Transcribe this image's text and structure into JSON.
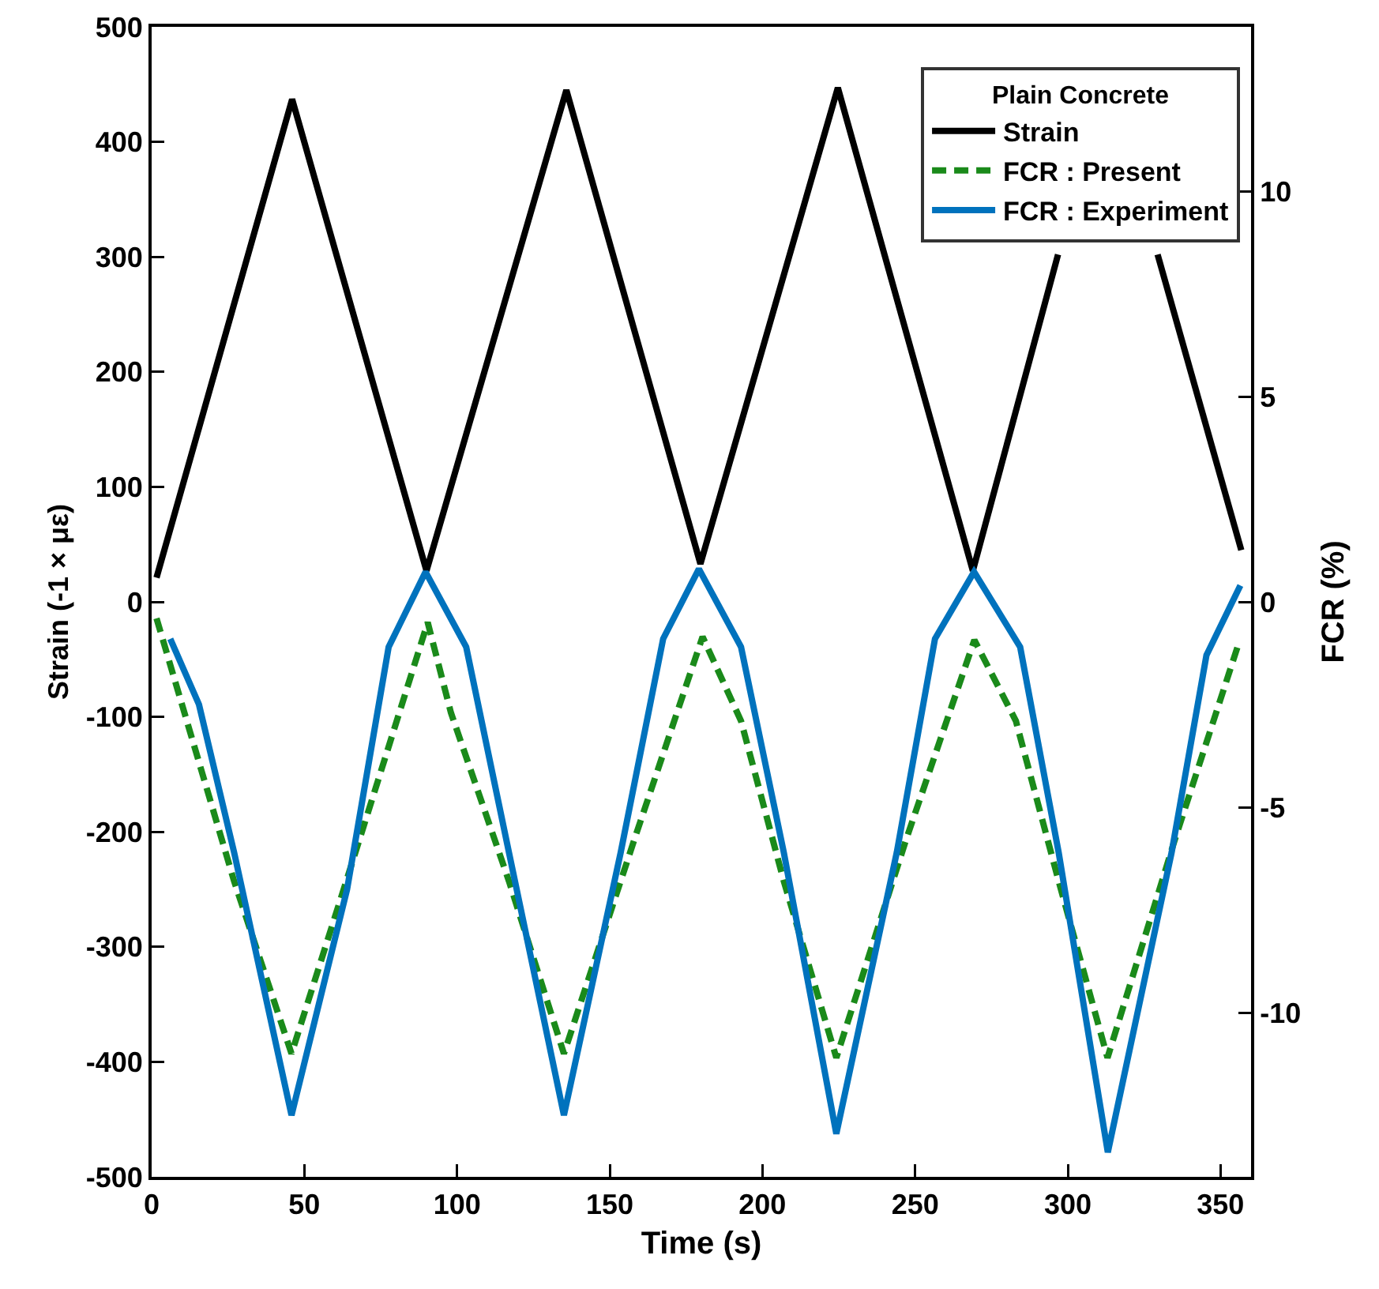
{
  "chart_data": {
    "type": "line",
    "xlabel": "Time (s)",
    "ylabel": "Strain (-1 × με)",
    "y2label": "FCR (%)",
    "legend_title": "Plain Concrete",
    "legend": "top right",
    "grid": false,
    "marker": "none",
    "xlim": [
      0,
      360
    ],
    "xticks": [
      0,
      50,
      100,
      150,
      200,
      250,
      300,
      350
    ],
    "ylim": [
      -500,
      500
    ],
    "yticks": [
      -500,
      -400,
      -300,
      -200,
      -100,
      0,
      100,
      200,
      300,
      400,
      500
    ],
    "y2lim": [
      -14,
      14
    ],
    "y2ticks": [
      -10,
      -5,
      0,
      5,
      10
    ],
    "series": [
      {
        "name": "Strain",
        "color": "#000000",
        "line_style": "solid",
        "x": [
          1.6,
          46,
          90,
          135.8,
          179.7,
          224.7,
          268.9,
          296.8,
          313,
          329.4,
          356.8
        ],
        "values": [
          21,
          437,
          27,
          445,
          33,
          447,
          27,
          302,
          null,
          302,
          45
        ]
      },
      {
        "name": "FCR : Present",
        "color": "#1a8a1a",
        "line_style": "dashed",
        "axis": "y2",
        "x": [
          1.6,
          27,
          45.8,
          68,
          90.4,
          98,
          117,
          135,
          158,
          180.4,
          193,
          207,
          224.2,
          247,
          269.4,
          283,
          297,
          313,
          335,
          356
        ],
        "values": [
          -0.4,
          -6.8,
          -11,
          -5.8,
          -0.5,
          -2.7,
          -6.8,
          -11,
          -5.8,
          -0.85,
          -2.9,
          -6.8,
          -11.1,
          -5.8,
          -0.93,
          -2.9,
          -6.8,
          -11.1,
          -5.8,
          -1
        ]
      },
      {
        "name": "FCR : Experiment",
        "color": "#0072bd",
        "line_style": "solid",
        "axis": "y2",
        "x": [
          6.1,
          15.5,
          27,
          45.8,
          64,
          77.6,
          89.7,
          103,
          117,
          135,
          153.6,
          167.5,
          179.2,
          193,
          207,
          224.2,
          244,
          256.5,
          269.3,
          284.4,
          297,
          313.1,
          334,
          345.4,
          356.5
        ],
        "values": [
          -0.9,
          -2.5,
          -6.1,
          -12.5,
          -7,
          -1.1,
          0.73,
          -1.1,
          -6.1,
          -12.5,
          -6.1,
          -0.9,
          0.8,
          -1.1,
          -6.1,
          -12.95,
          -6.1,
          -0.9,
          0.73,
          -1.1,
          -6.1,
          -13.4,
          -6.1,
          -1.3,
          0.4
        ]
      }
    ]
  }
}
